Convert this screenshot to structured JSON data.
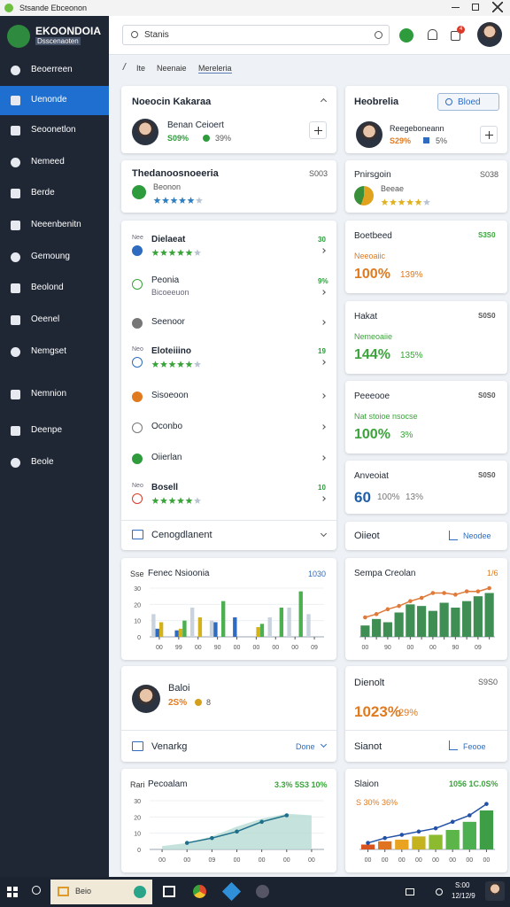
{
  "window": {
    "title": "Stsande Ebceonon"
  },
  "sidebar": {
    "app_name": "EKOONDOIA",
    "app_subtitle": "Dsscenaoten",
    "items": [
      "Beoerreen",
      "Uenonde",
      "Seoonetlon",
      "Nemeed",
      "Berde",
      "Neeenbenitn",
      "Gemoung",
      "Beolond",
      "Oeenel",
      "Nemgset",
      "Nemnion",
      "Deenpe",
      "Beole"
    ],
    "active": 1
  },
  "header": {
    "search_placeholder": "Stanis",
    "notification_count": "4"
  },
  "breadcrumb": [
    "Ite",
    "Neenaie",
    "Mereleria"
  ],
  "left": {
    "profile_card": {
      "title": "Noeocin Kakaraa",
      "name": "Benan Ceioert",
      "stat": "S09%",
      "change": "39%"
    },
    "summary_card": {
      "title": "Thedanoosnoeeria",
      "value": "S003",
      "label": "Beonon"
    },
    "list": [
      {
        "tag": "Nee",
        "label": "Dielaeat",
        "value": "30"
      },
      {
        "label": "Peonia",
        "sub": "Bicoeeuon",
        "value": "9%"
      },
      {
        "label": "Seenoor"
      },
      {
        "tag": "Neo",
        "label": "Eloteiiino",
        "value": "19"
      },
      {
        "label": "Sisoeoon"
      },
      {
        "label": "Oconbo"
      },
      {
        "label": "Oiierlan"
      },
      {
        "tag": "Neo",
        "label": "Bosell",
        "value": "10"
      }
    ],
    "list_footer": "Cenogdlanent",
    "person_card": {
      "name": "Baloi",
      "stat": "2S%",
      "extra": "8",
      "footer": "Venarkg",
      "action": "Done"
    }
  },
  "right": {
    "profile_card": {
      "title": "Heobrelia",
      "button": "Bloed",
      "name": "Reegeboneann",
      "stat": "S29%",
      "change": "5%"
    },
    "summary_card": {
      "title": "Pnirsgoin",
      "value": "S038",
      "label": "Beeae"
    },
    "metrics": [
      {
        "title": "Boetbeed",
        "value": "S3S0",
        "label": "Neeoaiic",
        "primary": "100%",
        "secondary": "139%"
      },
      {
        "title": "Hakat",
        "value": "S0S0",
        "label": "Nemeoaiie",
        "primary": "144%",
        "secondary": "135%"
      },
      {
        "title": "Peeeooe",
        "value": "S0S0",
        "label": "Nat stoioe nsocse",
        "primary": "100%",
        "secondary": "3%"
      },
      {
        "title": "Anveoiat",
        "value": "S0S0",
        "primary": "60",
        "secondary": "100%",
        "tertiary": "13%"
      }
    ],
    "metrics_footer": {
      "label": "Oiieot",
      "action": "Neodee"
    },
    "stat_card": {
      "title": "Dienolt",
      "value": "S9S0",
      "primary": "1023%",
      "secondary": "29%",
      "footer": "Sianot",
      "action": "Feooe"
    }
  },
  "charts": [
    {
      "type": "bar",
      "label": "Sse",
      "title": "Fenec Nsioonia",
      "corner": "1030",
      "categories": [
        "00",
        "99",
        "00",
        "90",
        "00",
        "00",
        "00",
        "00",
        "09"
      ],
      "ylim": [
        0,
        30
      ],
      "yticks": [
        0,
        10,
        20,
        30
      ],
      "series": [
        {
          "kind": "bar",
          "color": "#c9d3de",
          "values": [
            14,
            0,
            18,
            10,
            0,
            0,
            12,
            18,
            14
          ]
        },
        {
          "kind": "bar",
          "color": "#2f6bbf",
          "values": [
            5,
            4,
            0,
            9,
            12,
            0,
            0,
            0,
            0
          ]
        },
        {
          "kind": "bar",
          "color": "#d4b21c",
          "values": [
            9,
            5,
            12,
            0,
            0,
            6,
            0,
            0,
            0
          ]
        },
        {
          "kind": "bar",
          "color": "#4caf50",
          "values": [
            0,
            10,
            0,
            22,
            0,
            8,
            18,
            28,
            0
          ]
        }
      ]
    },
    {
      "type": "bar",
      "title": "Sempa Creolan",
      "corner": "1/6",
      "categories": [
        "00",
        null,
        "90",
        null,
        "00",
        null,
        "00",
        null,
        "90",
        null,
        "09",
        null
      ],
      "ylim": [
        0,
        30
      ],
      "series": [
        {
          "kind": "bar",
          "color": "#3f8f55",
          "values": [
            7,
            11,
            9,
            15,
            20,
            19,
            16,
            21,
            18,
            22,
            25,
            27
          ]
        },
        {
          "kind": "line",
          "color": "#e07a3a",
          "values": [
            12,
            14,
            17,
            19,
            22,
            24,
            27,
            27,
            26,
            28,
            28,
            30
          ]
        }
      ]
    },
    {
      "type": "line",
      "label": "Rari",
      "title": "Pecoalam",
      "corner": "3.3% 5S3 10%",
      "categories": [
        "00",
        "00",
        "09",
        "00",
        "00",
        "00",
        "00"
      ],
      "ylim": [
        0,
        30
      ],
      "yticks": [
        0,
        10,
        20,
        30
      ],
      "series": [
        {
          "kind": "area",
          "color": "#b7dcd3",
          "values": [
            2,
            4,
            8,
            14,
            19,
            22,
            21
          ]
        },
        {
          "kind": "line",
          "color": "#1f6f8b",
          "values": [
            null,
            4,
            7,
            11,
            17,
            21,
            null
          ]
        }
      ]
    },
    {
      "type": "bar",
      "title": "Slaion",
      "label": "S 30% 36%",
      "corner": "1056 1C.0S%",
      "categories": [
        "00",
        "00",
        "00",
        "00",
        "00",
        "00",
        "00",
        "00"
      ],
      "ylim": [
        0,
        30
      ],
      "series": [
        {
          "kind": "bar",
          "colors": [
            "#d9531e",
            "#e0731f",
            "#e9a320",
            "#c4b21e",
            "#8dbb2f",
            "#5bb548",
            "#4caf50",
            "#3e9e45"
          ],
          "values": [
            3,
            5,
            6,
            8,
            9,
            12,
            17,
            24
          ]
        },
        {
          "kind": "line",
          "color": "#2251a6",
          "values": [
            4,
            7,
            9,
            11,
            13,
            17,
            21,
            28
          ]
        }
      ]
    }
  ],
  "taskbar": {
    "app": "Beio",
    "time": "S:00",
    "date": "12/12/9"
  }
}
